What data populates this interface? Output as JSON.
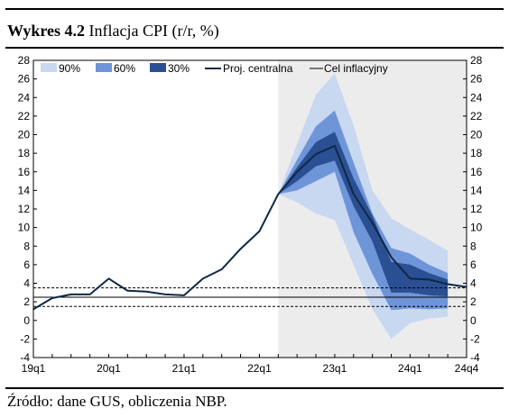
{
  "header": {
    "title_bold": "Wykres 4.2",
    "title_rest": "Inflacja CPI (r/r, %)"
  },
  "footer": {
    "source": "Źródło: dane GUS, obliczenia NBP."
  },
  "colors": {
    "band90": "#c9d8f1",
    "band60": "#6f95d9",
    "band30": "#2b4f93",
    "central": "#0f2846",
    "target": "#000000",
    "forecast_shade": "#ececec"
  },
  "chart_data": {
    "type": "line",
    "x_ticks": [
      "19q1",
      "20q1",
      "21q1",
      "22q1",
      "23q1",
      "24q1",
      "24q4"
    ],
    "y_ticks": [
      28,
      26,
      24,
      22,
      20,
      18,
      16,
      14,
      12,
      10,
      8,
      6,
      4,
      2,
      0,
      -2,
      -4
    ],
    "ylim": [
      -4,
      28
    ],
    "x_quarters": [
      "19q1",
      "19q2",
      "19q3",
      "19q4",
      "20q1",
      "20q2",
      "20q3",
      "20q4",
      "21q1",
      "21q2",
      "21q3",
      "21q4",
      "22q1",
      "22q2",
      "22q3",
      "22q4",
      "23q1",
      "23q2",
      "23q3",
      "23q4",
      "24q1",
      "24q2",
      "24q3",
      "24q4"
    ],
    "legend": [
      "90%",
      "60%",
      "30%",
      "Proj. centralna",
      "Cel inflacyjny"
    ],
    "series": [
      {
        "name": "Proj. centralna",
        "values": [
          1.2,
          2.4,
          2.8,
          2.8,
          4.5,
          3.2,
          3.1,
          2.8,
          2.7,
          4.5,
          5.5,
          7.7,
          9.6,
          13.6,
          16.0,
          17.9,
          18.8,
          13.6,
          10.5,
          6.8,
          4.5,
          4.4,
          3.9,
          3.6
        ]
      },
      {
        "name": "Cel inflacyjny",
        "values": [
          2.5,
          2.5
        ]
      }
    ],
    "target_band": [
      1.5,
      3.5
    ],
    "fan": {
      "start_quarter": "22q2",
      "band90": {
        "upper": [
          13.6,
          19.0,
          24.3,
          26.6,
          21.0,
          14.0,
          11.0,
          9.8,
          8.7,
          7.5
        ],
        "lower": [
          13.6,
          12.7,
          11.5,
          10.8,
          6.0,
          1.2,
          -2.0,
          -0.3,
          0.2,
          0.4
        ]
      },
      "band60": {
        "upper": [
          13.6,
          17.3,
          20.9,
          22.6,
          17.0,
          11.5,
          7.8,
          7.2,
          6.0,
          5.1
        ],
        "lower": [
          13.6,
          14.0,
          15.0,
          16.0,
          9.5,
          5.0,
          1.1,
          1.3,
          1.2,
          1.3
        ]
      },
      "band30": {
        "upper": [
          13.6,
          16.5,
          19.2,
          20.3,
          15.3,
          11.3,
          6.3,
          6.0,
          5.1,
          4.4
        ],
        "lower": [
          13.6,
          15.0,
          16.6,
          17.2,
          12.3,
          8.5,
          3.0,
          3.0,
          2.7,
          2.6
        ]
      }
    }
  }
}
